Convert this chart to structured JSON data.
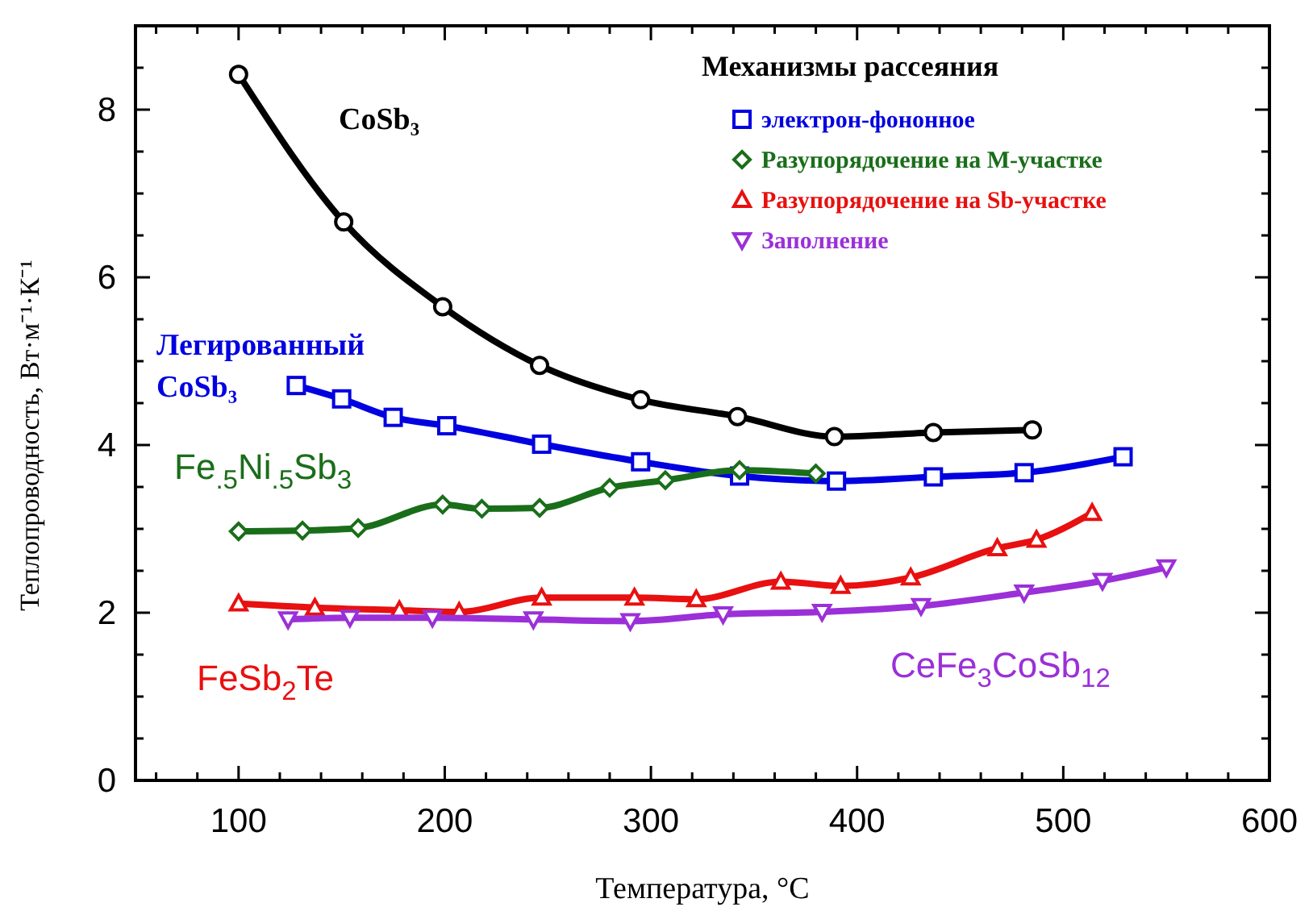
{
  "chart_data": {
    "type": "line",
    "xlabel": "Температура, °C",
    "ylabel": "Теплопроводность, Вт·м⁻¹·К⁻¹",
    "legend_title": "Механизмы рассеяния",
    "legend": "top right",
    "grid": false,
    "line_style": "solid",
    "xlim": [
      50,
      600
    ],
    "ylim": [
      0,
      9
    ],
    "xticks": [
      {
        "value": 60,
        "label": null
      },
      {
        "value": 80,
        "label": null
      },
      100,
      {
        "value": 120,
        "label": null
      },
      {
        "value": 140,
        "label": null
      },
      {
        "value": 160,
        "label": null
      },
      {
        "value": 180,
        "label": null
      },
      200,
      {
        "value": 220,
        "label": null
      },
      {
        "value": 240,
        "label": null
      },
      {
        "value": 260,
        "label": null
      },
      {
        "value": 280,
        "label": null
      },
      300,
      {
        "value": 320,
        "label": null
      },
      {
        "value": 340,
        "label": null
      },
      {
        "value": 360,
        "label": null
      },
      {
        "value": 380,
        "label": null
      },
      400,
      {
        "value": 420,
        "label": null
      },
      {
        "value": 440,
        "label": null
      },
      {
        "value": 460,
        "label": null
      },
      {
        "value": 480,
        "label": null
      },
      500,
      {
        "value": 520,
        "label": null
      },
      {
        "value": 540,
        "label": null
      },
      {
        "value": 560,
        "label": null
      },
      {
        "value": 580,
        "label": null
      },
      600
    ],
    "yticks": [
      0,
      {
        "value": 0.5,
        "label": null
      },
      {
        "value": 1,
        "label": null
      },
      {
        "value": 1.5,
        "label": null
      },
      2,
      {
        "value": 2.5,
        "label": null
      },
      {
        "value": 3,
        "label": null
      },
      {
        "value": 3.5,
        "label": null
      },
      4,
      {
        "value": 4.5,
        "label": null
      },
      {
        "value": 5,
        "label": null
      },
      {
        "value": 5.5,
        "label": null
      },
      6,
      {
        "value": 6.5,
        "label": null
      },
      {
        "value": 7,
        "label": null
      },
      {
        "value": 7.5,
        "label": null
      },
      8,
      {
        "value": 8.5,
        "label": null
      }
    ],
    "series": [
      {
        "color": "#000000",
        "marker": "circle",
        "x": [
          100,
          151,
          199,
          246,
          295,
          342,
          389,
          437,
          485
        ],
        "values": [
          8.42,
          6.66,
          5.65,
          4.95,
          4.54,
          4.34,
          4.1,
          4.15,
          4.18
        ]
      },
      {
        "name": "электрон-фононное",
        "color": "#0000e0",
        "marker": "square",
        "x": [
          128,
          150,
          175,
          201,
          247,
          295,
          343,
          390,
          437,
          481,
          529
        ],
        "values": [
          4.71,
          4.55,
          4.33,
          4.23,
          4.01,
          3.8,
          3.63,
          3.57,
          3.62,
          3.67,
          3.86
        ]
      },
      {
        "name": "Разупорядочение на М-участке",
        "color": "#1a6e1a",
        "marker": "diamond",
        "x": [
          100,
          131,
          158,
          199,
          218,
          246,
          280,
          307,
          343,
          380
        ],
        "values": [
          2.97,
          2.98,
          3.01,
          3.29,
          3.24,
          3.25,
          3.49,
          3.58,
          3.7,
          3.66
        ]
      },
      {
        "name": "Разупорядочение на Sb-участке",
        "color": "#e81010",
        "marker": "triangle",
        "x": [
          100,
          137,
          178,
          207,
          247,
          292,
          322,
          363,
          392,
          426,
          468,
          487,
          514
        ],
        "values": [
          2.11,
          2.06,
          2.03,
          2.01,
          2.18,
          2.18,
          2.16,
          2.37,
          2.32,
          2.42,
          2.77,
          2.87,
          3.19
        ]
      },
      {
        "name": "Заполнение",
        "color": "#9b30d8",
        "marker": "triangle-down",
        "x": [
          124,
          154,
          194,
          243,
          290,
          335,
          383,
          431,
          481,
          519,
          550
        ],
        "values": [
          1.92,
          1.94,
          1.94,
          1.92,
          1.9,
          1.98,
          2.01,
          2.08,
          2.24,
          2.38,
          2.54
        ]
      }
    ],
    "annotations": [
      "CoSb₃",
      "Легированный CoSb₃",
      "Fe$_{.5}$Ni$_{.5}$Sb$_{3}$",
      "FeSb$_{2}$Te",
      "CeFe$_{3}$CoSb$_{12}$"
    ]
  }
}
